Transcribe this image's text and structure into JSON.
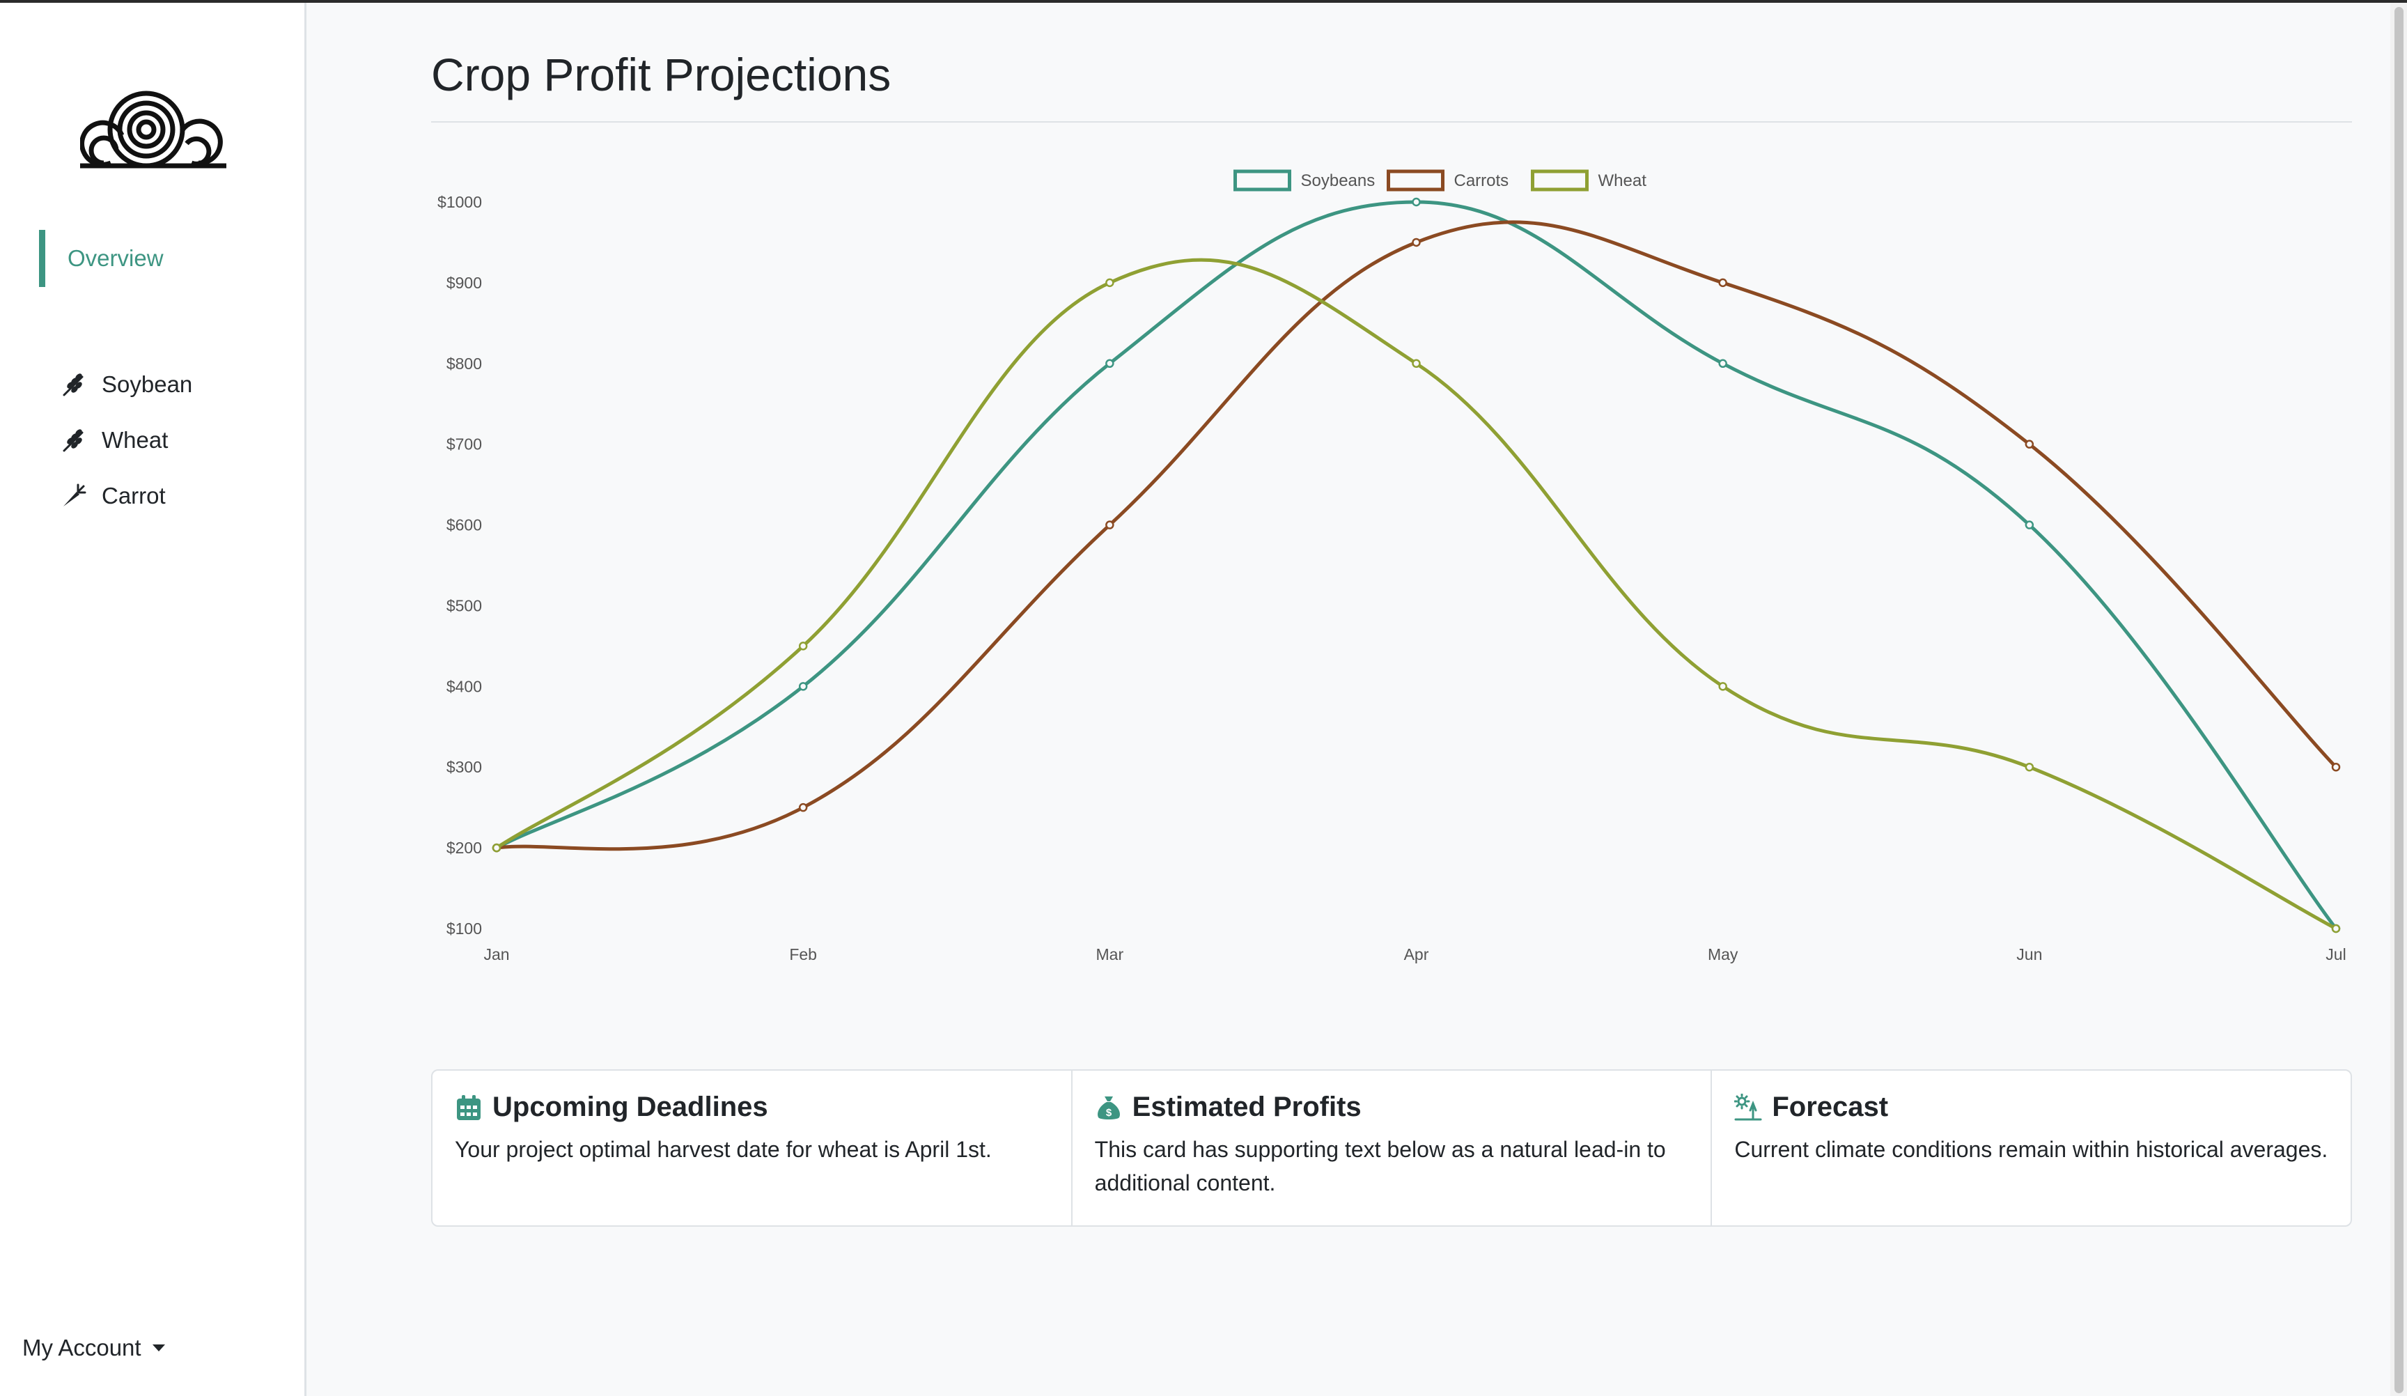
{
  "sidebar": {
    "overview_label": "Overview",
    "items": [
      {
        "label": "Soybean",
        "icon": "wheat-icon"
      },
      {
        "label": "Wheat",
        "icon": "wheat-icon"
      },
      {
        "label": "Carrot",
        "icon": "carrot-icon"
      }
    ],
    "account_label": "My Account"
  },
  "header": {
    "title": "Crop Profit Projections"
  },
  "colors": {
    "accent": "#3d9582",
    "soybeans": "#3d9582",
    "carrots": "#8b4a22",
    "wheat": "#8fa033"
  },
  "chart_data": {
    "type": "line",
    "title": "",
    "xlabel": "",
    "ylabel": "",
    "categories": [
      "Jan",
      "Feb",
      "Mar",
      "Apr",
      "May",
      "Jun",
      "Jul"
    ],
    "ylim": [
      100,
      1000
    ],
    "yticks": [
      "$1000",
      "$900",
      "$800",
      "$700",
      "$600",
      "$500",
      "$400",
      "$300",
      "$200",
      "$100"
    ],
    "legend": "top-center",
    "grid": false,
    "series": [
      {
        "name": "Soybeans",
        "color": "#3d9582",
        "values": [
          200,
          400,
          800,
          1000,
          800,
          600,
          100
        ]
      },
      {
        "name": "Carrots",
        "color": "#8b4a22",
        "values": [
          200,
          250,
          600,
          950,
          900,
          700,
          300
        ]
      },
      {
        "name": "Wheat",
        "color": "#8fa033",
        "values": [
          200,
          450,
          900,
          800,
          400,
          300,
          100
        ]
      }
    ]
  },
  "cards": [
    {
      "title": "Upcoming Deadlines",
      "icon": "calendar-icon",
      "text": "Your project optimal harvest date for wheat is April 1st."
    },
    {
      "title": "Estimated Profits",
      "icon": "money-bag-icon",
      "text": "This card has supporting text below as a natural lead-in to additional content."
    },
    {
      "title": "Forecast",
      "icon": "sun-cloud-icon",
      "text": "Current climate conditions remain within historical averages."
    }
  ]
}
